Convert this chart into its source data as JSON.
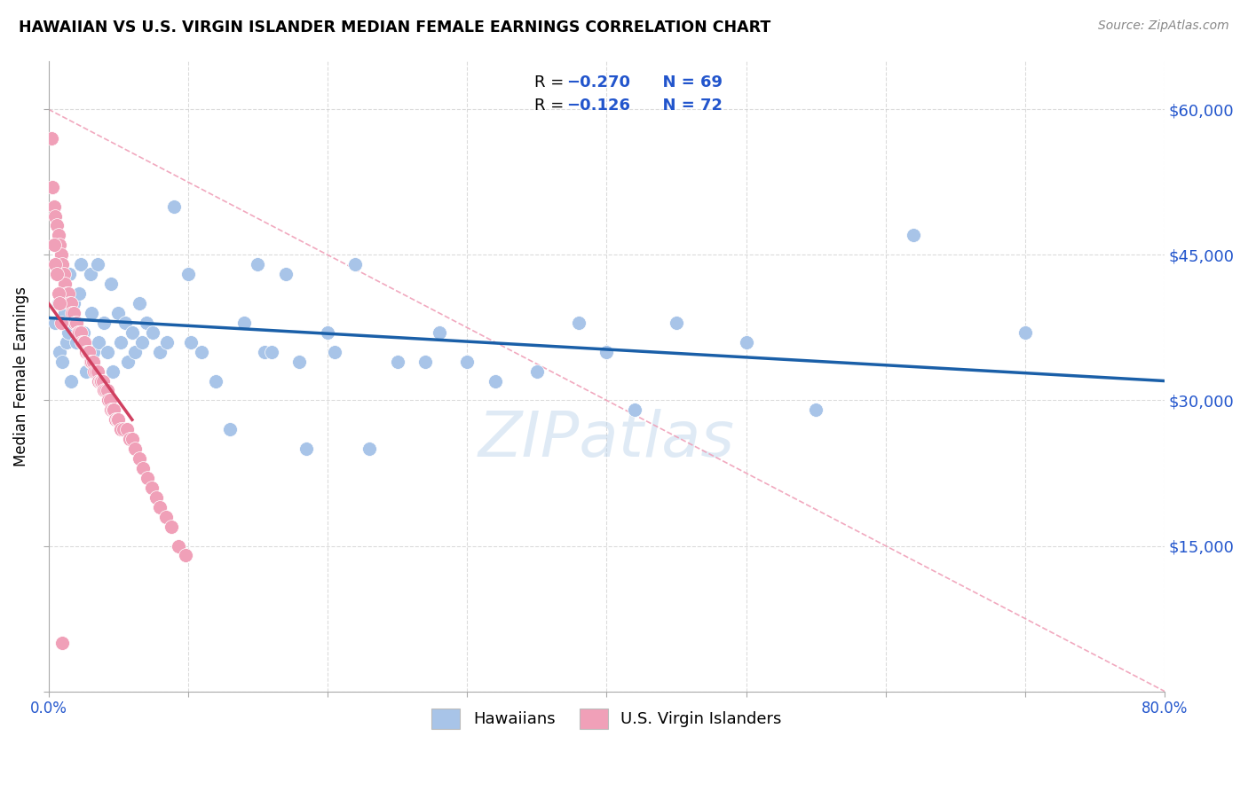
{
  "title": "HAWAIIAN VS U.S. VIRGIN ISLANDER MEDIAN FEMALE EARNINGS CORRELATION CHART",
  "source": "Source: ZipAtlas.com",
  "ylabel": "Median Female Earnings",
  "yticks": [
    0,
    15000,
    30000,
    45000,
    60000
  ],
  "ytick_labels": [
    "",
    "$15,000",
    "$30,000",
    "$45,000",
    "$60,000"
  ],
  "xmin": 0.0,
  "xmax": 0.8,
  "ymin": 0,
  "ymax": 65000,
  "hawaiian_color": "#a8c4e8",
  "virgin_color": "#f0a0b8",
  "trendline_hawaiian_color": "#1a5fa8",
  "trendline_virgin_color": "#d04060",
  "trendline_dashed_color": "#f0a0b8",
  "legend_color_blue": "#2255cc",
  "watermark": "ZIPatlas",
  "hawaiian_x": [
    0.005,
    0.007,
    0.008,
    0.01,
    0.012,
    0.013,
    0.014,
    0.015,
    0.016,
    0.018,
    0.019,
    0.02,
    0.022,
    0.023,
    0.025,
    0.026,
    0.027,
    0.03,
    0.031,
    0.032,
    0.035,
    0.036,
    0.04,
    0.042,
    0.045,
    0.046,
    0.05,
    0.052,
    0.055,
    0.057,
    0.06,
    0.062,
    0.065,
    0.067,
    0.07,
    0.075,
    0.08,
    0.085,
    0.09,
    0.1,
    0.102,
    0.11,
    0.12,
    0.13,
    0.14,
    0.15,
    0.155,
    0.16,
    0.17,
    0.18,
    0.185,
    0.2,
    0.205,
    0.22,
    0.23,
    0.25,
    0.27,
    0.28,
    0.3,
    0.32,
    0.35,
    0.38,
    0.4,
    0.42,
    0.45,
    0.5,
    0.55,
    0.62,
    0.7
  ],
  "hawaiian_y": [
    38000,
    40000,
    35000,
    34000,
    39000,
    36000,
    37000,
    43000,
    32000,
    40000,
    38000,
    36000,
    41000,
    44000,
    37000,
    36000,
    33000,
    43000,
    39000,
    35000,
    44000,
    36000,
    38000,
    35000,
    42000,
    33000,
    39000,
    36000,
    38000,
    34000,
    37000,
    35000,
    40000,
    36000,
    38000,
    37000,
    35000,
    36000,
    50000,
    43000,
    36000,
    35000,
    32000,
    27000,
    38000,
    44000,
    35000,
    35000,
    43000,
    34000,
    25000,
    37000,
    35000,
    44000,
    25000,
    34000,
    34000,
    37000,
    34000,
    32000,
    33000,
    38000,
    35000,
    29000,
    38000,
    36000,
    29000,
    47000,
    37000
  ],
  "virgin_x": [
    0.002,
    0.003,
    0.004,
    0.005,
    0.006,
    0.007,
    0.008,
    0.009,
    0.01,
    0.011,
    0.012,
    0.013,
    0.014,
    0.015,
    0.016,
    0.017,
    0.018,
    0.019,
    0.02,
    0.021,
    0.022,
    0.023,
    0.024,
    0.025,
    0.026,
    0.027,
    0.028,
    0.029,
    0.03,
    0.031,
    0.032,
    0.033,
    0.034,
    0.035,
    0.036,
    0.037,
    0.038,
    0.039,
    0.04,
    0.041,
    0.042,
    0.043,
    0.044,
    0.045,
    0.046,
    0.047,
    0.048,
    0.049,
    0.05,
    0.052,
    0.054,
    0.056,
    0.058,
    0.06,
    0.062,
    0.065,
    0.068,
    0.071,
    0.074,
    0.077,
    0.08,
    0.084,
    0.088,
    0.093,
    0.098,
    0.004,
    0.005,
    0.006,
    0.007,
    0.008,
    0.009,
    0.01
  ],
  "virgin_y": [
    57000,
    52000,
    50000,
    49000,
    48000,
    47000,
    46000,
    45000,
    44000,
    43000,
    42000,
    41000,
    41000,
    40000,
    40000,
    39000,
    39000,
    38000,
    38000,
    37000,
    37000,
    37000,
    36000,
    36000,
    36000,
    35000,
    35000,
    35000,
    34000,
    34000,
    34000,
    33000,
    33000,
    33000,
    32000,
    32000,
    32000,
    32000,
    31000,
    31000,
    31000,
    30000,
    30000,
    29000,
    29000,
    29000,
    28000,
    28000,
    28000,
    27000,
    27000,
    27000,
    26000,
    26000,
    25000,
    24000,
    23000,
    22000,
    21000,
    20000,
    19000,
    18000,
    17000,
    15000,
    14000,
    46000,
    44000,
    43000,
    41000,
    40000,
    38000,
    5000
  ]
}
